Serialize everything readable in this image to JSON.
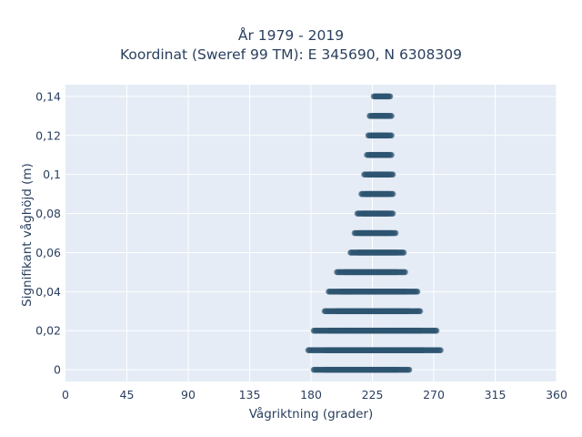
{
  "chart_data": {
    "type": "scatter",
    "title": "År 1979 - 2019",
    "subtitle": "Koordinat (Sweref 99 TM): E 345690, N 6308309",
    "xlabel": "Vågriktning (grader)",
    "ylabel": "Signifikant våghöjd (m)",
    "xlim": [
      0,
      360
    ],
    "ylim": [
      -0.006,
      0.146
    ],
    "x_ticks": [
      0,
      45,
      90,
      135,
      180,
      225,
      270,
      315,
      360
    ],
    "x_tick_labels": [
      "0",
      "45",
      "90",
      "135",
      "180",
      "225",
      "270",
      "315",
      "360"
    ],
    "y_ticks": [
      0,
      0.02,
      0.04,
      0.06,
      0.08,
      0.1,
      0.12,
      0.14
    ],
    "y_tick_labels": [
      "0",
      "0,02",
      "0,04",
      "0,06",
      "0,08",
      "0,1",
      "0,12",
      "0,14"
    ],
    "grid": true,
    "marker_color": "#2e5470",
    "background_color": "#e5ecf6",
    "bands": [
      {
        "y": 0.0,
        "x_min": 182,
        "x_max": 252
      },
      {
        "y": 0.01,
        "x_min": 178,
        "x_max": 275
      },
      {
        "y": 0.02,
        "x_min": 182,
        "x_max": 272
      },
      {
        "y": 0.03,
        "x_min": 190,
        "x_max": 260
      },
      {
        "y": 0.04,
        "x_min": 193,
        "x_max": 258
      },
      {
        "y": 0.05,
        "x_min": 199,
        "x_max": 249
      },
      {
        "y": 0.06,
        "x_min": 209,
        "x_max": 248
      },
      {
        "y": 0.07,
        "x_min": 212,
        "x_max": 242
      },
      {
        "y": 0.08,
        "x_min": 214,
        "x_max": 240
      },
      {
        "y": 0.09,
        "x_min": 217,
        "x_max": 240
      },
      {
        "y": 0.1,
        "x_min": 219,
        "x_max": 240
      },
      {
        "y": 0.11,
        "x_min": 221,
        "x_max": 239
      },
      {
        "y": 0.12,
        "x_min": 222,
        "x_max": 239
      },
      {
        "y": 0.13,
        "x_min": 223,
        "x_max": 239
      },
      {
        "y": 0.14,
        "x_min": 226,
        "x_max": 238
      }
    ]
  }
}
